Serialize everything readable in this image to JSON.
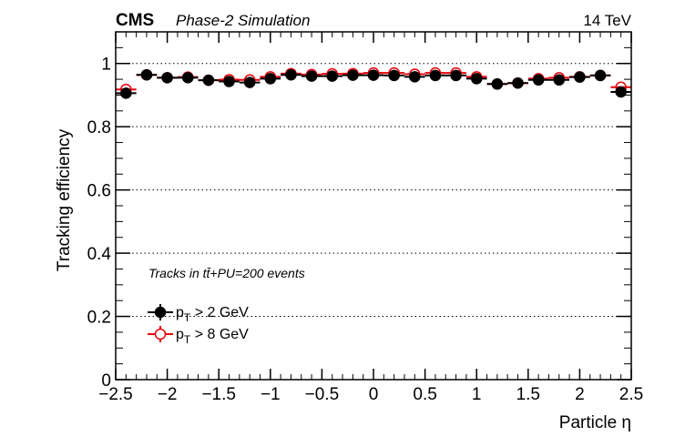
{
  "chart_data": {
    "type": "scatter",
    "title_left": "CMS",
    "title_left_sub": "Phase-2 Simulation",
    "title_right": "14 TeV",
    "xlabel": "Particle η",
    "ylabel": "Tracking efficiency",
    "annotation": "Tracks in tt̄+PU=200 events",
    "xlim": [
      -2.5,
      2.5
    ],
    "ylim": [
      0,
      1.1
    ],
    "xticks": [
      "−2.5",
      "−2",
      "−1.5",
      "−1",
      "−0.5",
      "0",
      "0.5",
      "1",
      "1.5",
      "2",
      "2.5"
    ],
    "xtick_values": [
      -2.5,
      -2,
      -1.5,
      -1,
      -0.5,
      0,
      0.5,
      1,
      1.5,
      2,
      2.5
    ],
    "yticks": [
      "0",
      "0.2",
      "0.4",
      "0.6",
      "0.8",
      "1"
    ],
    "ytick_values": [
      0,
      0.2,
      0.4,
      0.6,
      0.8,
      1
    ],
    "grid": "horizontal-dotted",
    "bin_width": 0.2,
    "x": [
      -2.4,
      -2.2,
      -2.0,
      -1.8,
      -1.6,
      -1.4,
      -1.2,
      -1.0,
      -0.8,
      -0.6,
      -0.4,
      -0.2,
      0.0,
      0.2,
      0.4,
      0.6,
      0.8,
      1.0,
      1.2,
      1.4,
      1.6,
      1.8,
      2.0,
      2.2,
      2.4
    ],
    "series": [
      {
        "name": "p_T > 2 GeV",
        "label_main": "p",
        "label_sub": "T",
        "label_rest": " > 2 GeV",
        "color": "#000000",
        "marker": "filled-circle",
        "values": [
          0.906,
          0.964,
          0.955,
          0.955,
          0.947,
          0.943,
          0.94,
          0.952,
          0.964,
          0.96,
          0.96,
          0.963,
          0.963,
          0.962,
          0.958,
          0.962,
          0.962,
          0.952,
          0.935,
          0.938,
          0.948,
          0.948,
          0.957,
          0.962,
          0.91
        ]
      },
      {
        "name": "p_T > 8 GeV",
        "label_main": "p",
        "label_sub": "T",
        "label_rest": " > 8 GeV",
        "color": "#e8000b",
        "marker": "open-circle",
        "values": [
          0.918,
          0.964,
          0.955,
          0.957,
          0.947,
          0.949,
          0.948,
          0.958,
          0.968,
          0.965,
          0.967,
          0.968,
          0.97,
          0.97,
          0.966,
          0.97,
          0.97,
          0.958,
          0.935,
          0.938,
          0.952,
          0.955,
          0.958,
          0.962,
          0.925
        ]
      }
    ],
    "legend_position": "lower-left"
  }
}
